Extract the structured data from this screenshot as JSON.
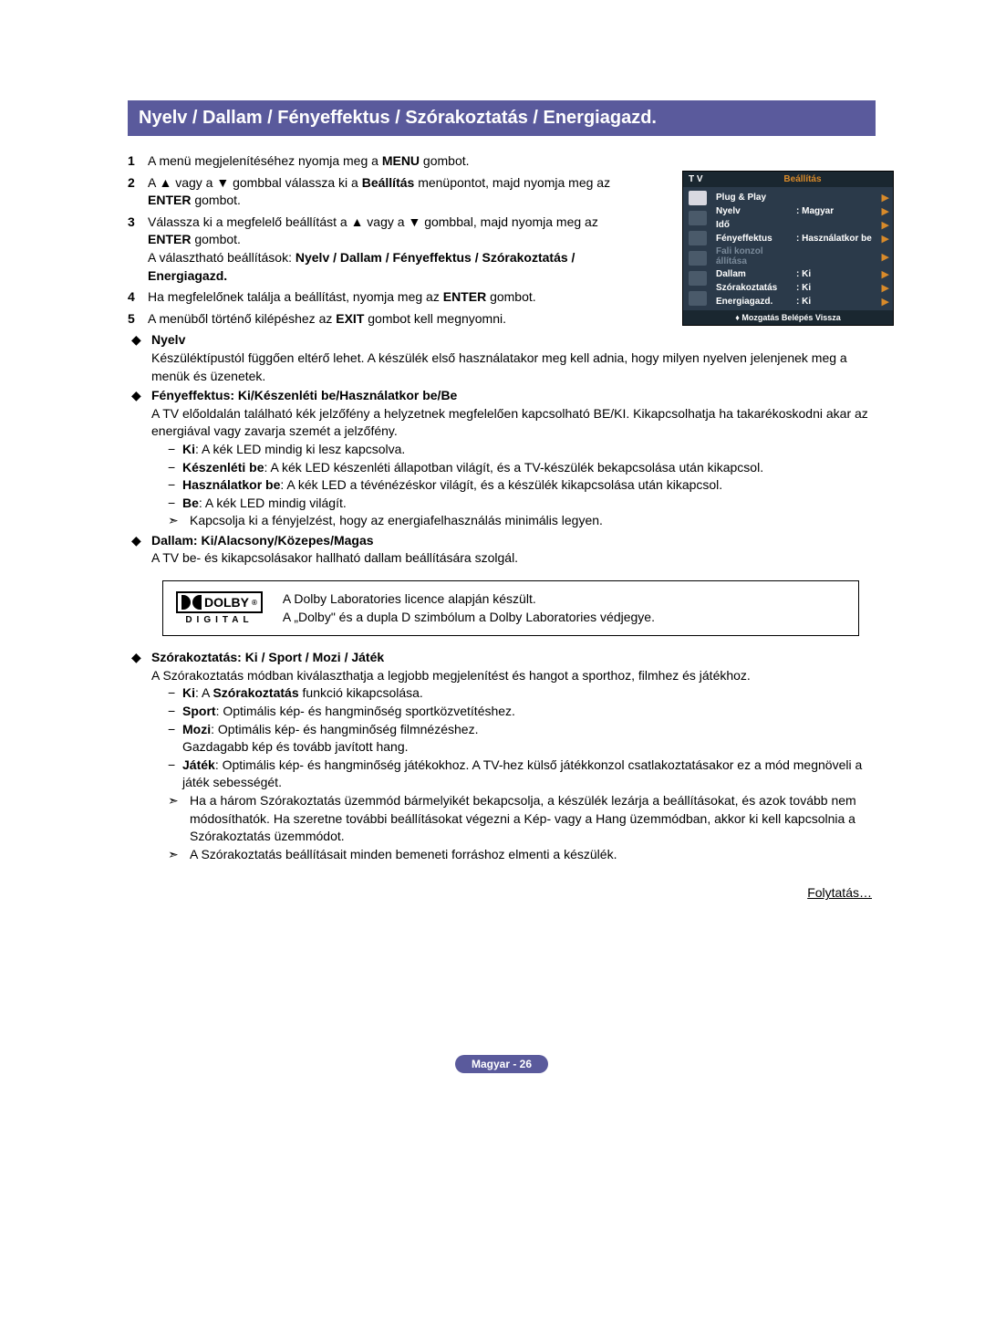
{
  "title": "Nyelv / Dallam / Fényeffektus / Szórakoztatás / Energiagazd.",
  "steps": {
    "s1": {
      "n": "1",
      "t1": "A menü megjelenítéséhez nyomja meg a ",
      "b1": "MENU",
      "t2": " gombot."
    },
    "s2": {
      "n": "2",
      "t1": "A ▲ vagy a ▼ gombbal válassza ki a ",
      "b1": "Beállítás",
      "t2": " menüpontot, majd nyomja meg az ",
      "b2": "ENTER",
      "t3": " gombot."
    },
    "s3": {
      "n": "3",
      "t1": "Válassza ki a megfelelő beállítást a ▲ vagy a ▼ gombbal, majd nyomja meg az ",
      "b1": "ENTER",
      "t2": " gombot.",
      "t3": "A választható beállítások: ",
      "b2": "Nyelv / Dallam / Fényeffektus / Szórakoztatás / Energiagazd."
    },
    "s4": {
      "n": "4",
      "t1": "Ha megfelelőnek találja a beállítást, nyomja meg az ",
      "b1": "ENTER",
      "t2": " gombot."
    },
    "s5": {
      "n": "5",
      "t1": "A menüből történő kilépéshez az ",
      "b1": "EXIT",
      "t2": " gombot kell megnyomni."
    }
  },
  "osd": {
    "tv": "T V",
    "title": "Beállítás",
    "rows": [
      {
        "label": "Plug & Play",
        "val": "",
        "arrow": "▶",
        "dim": false
      },
      {
        "label": "Nyelv",
        "val": ": Magyar",
        "arrow": "▶",
        "dim": false
      },
      {
        "label": "Idő",
        "val": "",
        "arrow": "▶",
        "dim": false
      },
      {
        "label": "Fényeffektus",
        "val": ": Használatkor be",
        "arrow": "▶",
        "dim": false
      },
      {
        "label": "Fali konzol állítása",
        "val": "",
        "arrow": "▶",
        "dim": true
      },
      {
        "label": "Dallam",
        "val": ": Ki",
        "arrow": "▶",
        "dim": false
      },
      {
        "label": "Szórakoztatás",
        "val": ": Ki",
        "arrow": "▶",
        "dim": false
      },
      {
        "label": "Energiagazd.",
        "val": ": Ki",
        "arrow": "▶",
        "dim": false
      }
    ],
    "footer": "Mozgatás     Belépés     Vissza"
  },
  "bul_nyelv": {
    "title": "Nyelv",
    "text": "Készüléktípustól függően eltérő lehet. A készülék első használatakor meg kell adnia, hogy milyen nyelven jelenjenek meg a menük és üzenetek."
  },
  "bul_feny": {
    "title": "Fényeffektus",
    "sep": ": ",
    "opts": "Ki/Készenléti be/Használatkor be/Be",
    "text": "A TV előoldalán található kék jelzőfény a helyzetnek megfelelően kapcsolható BE/KI. Kikapcsolhatja ha takarékoskodni akar az energiával vagy zavarja szemét a jelzőfény.",
    "d1b": "Ki",
    "d1": ": A kék LED mindig ki lesz kapcsolva.",
    "d2b": "Készenléti be",
    "d2": ": A kék LED készenléti állapotban világít, és a TV-készülék bekapcsolása után kikapcsol.",
    "d3b": "Használatkor be",
    "d3": ": A kék LED a tévénézéskor világít, és a készülék kikapcsolása után kikapcsol.",
    "d4b": "Be",
    "d4": ": A kék LED mindig világít.",
    "note": "Kapcsolja ki a fényjelzést, hogy az energiafelhasználás minimális legyen."
  },
  "bul_dallam": {
    "title": "Dallam",
    "sep": ": ",
    "opts": "Ki/Alacsony/Közepes/Magas",
    "text": "A TV be- és kikapcsolásakor hallható dallam beállítására szolgál."
  },
  "dolby": {
    "brand": "DOLBY",
    "digital": "DIGITAL",
    "l1": "A Dolby Laboratories licence alapján készült.",
    "l2": "A „Dolby\" és a dupla D szimbólum a Dolby Laboratories védjegye."
  },
  "bul_szor": {
    "title": "Szórakoztatás: Ki / Sport / Mozi / Játék",
    "text": "A Szórakoztatás módban kiválaszthatja a legjobb megjelenítést és hangot a sporthoz, filmhez és játékhoz.",
    "d1b": "Ki",
    "d1a": ": A ",
    "d1c": "Szórakoztatás",
    "d1d": " funkció kikapcsolása.",
    "d2b": "Sport",
    "d2": ": Optimális kép- és hangminőség sportközvetítéshez.",
    "d3b": "Mozi",
    "d3": ": Optimális kép- és hangminőség filmnézéshez.",
    "d3x": "Gazdagabb kép és tovább javított hang.",
    "d4b": "Játék",
    "d4": ": Optimális kép- és hangminőség játékokhoz. A TV-hez külső játékkonzol csatlakoztatásakor ez a mód megnöveli a játék sebességét.",
    "n1": "Ha a három Szórakoztatás üzemmód bármelyikét bekapcsolja, a készülék lezárja a beállításokat, és azok tovább nem módosíthatók. Ha szeretne további beállításokat végezni a Kép- vagy a Hang üzemmódban, akkor ki kell kapcsolnia a Szórakoztatás üzemmódot.",
    "n2": "A Szórakoztatás beállításait minden bemeneti forráshoz elmenti a készülék."
  },
  "continued": "Folytatás…",
  "footer": "Magyar - 26"
}
